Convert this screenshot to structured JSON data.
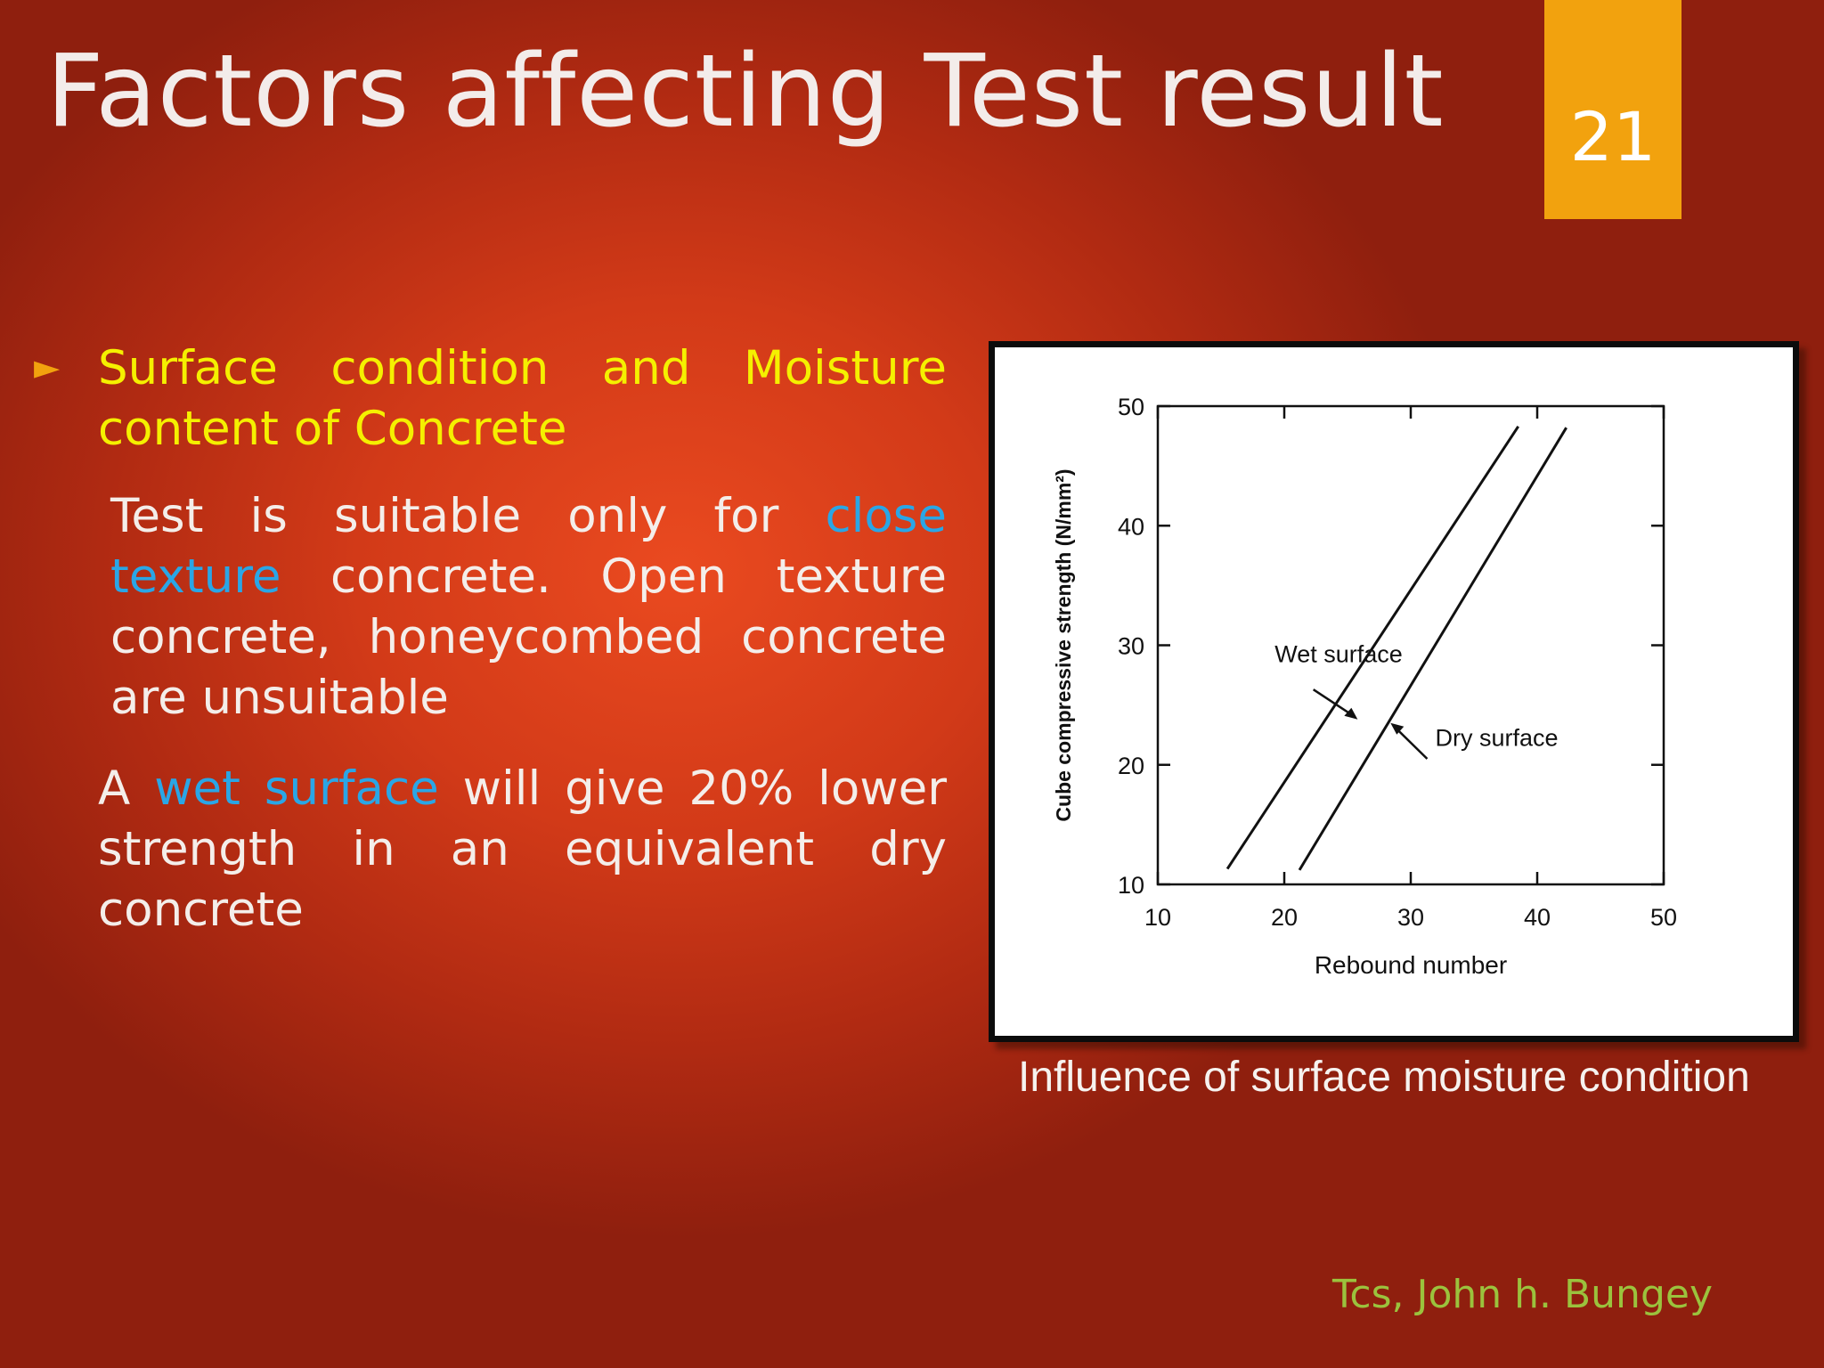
{
  "slide": {
    "title": "Factors affecting Test result",
    "number": "21"
  },
  "content": {
    "bullet_heading": "Surface condition and Moisture content of Concrete",
    "para1": {
      "before": "Test is suitable only for ",
      "highlight": "close texture",
      "after": " concrete. Open texture concrete, honeycombed concrete are unsuitable"
    },
    "para2": {
      "before": "A ",
      "highlight": "wet surface",
      "after": " will give 20% lower strength in an equivalent dry concrete"
    }
  },
  "figure": {
    "caption": "Influence of surface moisture condition",
    "credit": "Tcs, John h. Bungey"
  },
  "chart_data": {
    "type": "line",
    "xlabel": "Rebound number",
    "ylabel": "Cube compressive strength (N/mm²)",
    "xlim": [
      10,
      50
    ],
    "ylim": [
      10,
      50
    ],
    "xticks": [
      10,
      20,
      30,
      40,
      50
    ],
    "yticks": [
      10,
      20,
      30,
      40,
      50
    ],
    "grid": false,
    "series": [
      {
        "name": "Wet surface",
        "x": [
          15.5,
          38.5
        ],
        "y": [
          11.3,
          48.3
        ]
      },
      {
        "name": "Dry surface",
        "x": [
          21.2,
          42.3
        ],
        "y": [
          11.2,
          48.2
        ]
      }
    ],
    "annotations": [
      {
        "text": "Wet surface",
        "x": 24.3,
        "y": 28.6
      },
      {
        "text": "Dry surface",
        "x": 36.8,
        "y": 21.6
      }
    ]
  }
}
